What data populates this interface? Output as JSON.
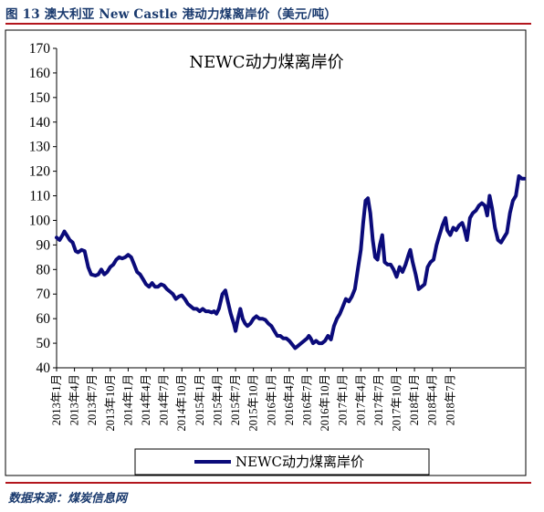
{
  "figure": {
    "title": "图 13 澳大利亚 New Castle 港动力煤离岸价（美元/吨）",
    "source": "数据来源：煤炭信息网"
  },
  "colors": {
    "series": "#0b0b7a",
    "rule": "#b3161d",
    "frame": "#000000"
  },
  "chart_data": {
    "type": "line",
    "title": "NEWC动力煤离岸价",
    "xlabel": "",
    "ylabel": "",
    "ylim": [
      40,
      170
    ],
    "yticks": [
      40,
      50,
      60,
      70,
      80,
      90,
      100,
      110,
      120,
      130,
      140,
      150,
      160,
      170
    ],
    "x_tick_labels": [
      "2013年1月",
      "2013年4月",
      "2013年7月",
      "2013年10月",
      "2014年1月",
      "2014年4月",
      "2014年7月",
      "2014年10月",
      "2015年1月",
      "2015年4月",
      "2015年7月",
      "2015年10月",
      "2016年1月",
      "2016年4月",
      "2016年7月",
      "2016年10月",
      "2017年1月",
      "2017年4月",
      "2017年7月",
      "2017年10月",
      "2018年1月",
      "2018年4月",
      "2018年7月"
    ],
    "legend": {
      "position": "bottom",
      "label": "NEWC动力煤离岸价"
    },
    "grid": false,
    "series": [
      {
        "name": "NEWC动力煤离岸价",
        "x_unit": "months since 2013年1月",
        "points": [
          [
            0,
            93
          ],
          [
            0.5,
            92
          ],
          [
            1,
            94
          ],
          [
            1.3,
            95.5
          ],
          [
            1.7,
            94
          ],
          [
            2.2,
            92
          ],
          [
            2.7,
            91
          ],
          [
            3.2,
            87.5
          ],
          [
            3.6,
            87
          ],
          [
            4.2,
            88
          ],
          [
            4.7,
            87.5
          ],
          [
            5.3,
            81
          ],
          [
            5.8,
            78
          ],
          [
            6.5,
            77.5
          ],
          [
            7,
            78
          ],
          [
            7.5,
            80
          ],
          [
            8,
            78
          ],
          [
            8.5,
            79
          ],
          [
            9,
            81
          ],
          [
            9.5,
            82
          ],
          [
            10,
            84
          ],
          [
            10.5,
            85
          ],
          [
            11,
            84.5
          ],
          [
            11.5,
            85
          ],
          [
            12,
            86
          ],
          [
            12.5,
            85
          ],
          [
            13,
            82
          ],
          [
            13.5,
            79
          ],
          [
            14,
            78
          ],
          [
            14.5,
            76
          ],
          [
            15,
            74
          ],
          [
            15.5,
            73
          ],
          [
            16,
            74.5
          ],
          [
            16.5,
            73
          ],
          [
            17,
            73
          ],
          [
            17.5,
            74
          ],
          [
            18,
            73.5
          ],
          [
            18.5,
            72
          ],
          [
            19,
            71
          ],
          [
            19.5,
            70
          ],
          [
            20,
            68
          ],
          [
            20.5,
            69
          ],
          [
            21,
            69.5
          ],
          [
            21.5,
            68
          ],
          [
            22,
            66
          ],
          [
            22.5,
            65
          ],
          [
            23,
            64
          ],
          [
            23.5,
            64
          ],
          [
            24,
            63
          ],
          [
            24.5,
            64
          ],
          [
            25,
            63
          ],
          [
            25.5,
            63
          ],
          [
            26,
            62.5
          ],
          [
            26.4,
            63
          ],
          [
            26.8,
            62
          ],
          [
            27.2,
            64
          ],
          [
            27.8,
            70
          ],
          [
            28.3,
            71.5
          ],
          [
            28.7,
            67
          ],
          [
            29.2,
            62
          ],
          [
            29.7,
            58
          ],
          [
            30,
            55
          ],
          [
            30.4,
            60
          ],
          [
            30.8,
            64
          ],
          [
            31.2,
            60
          ],
          [
            31.6,
            58
          ],
          [
            32,
            57
          ],
          [
            32.5,
            58
          ],
          [
            33,
            60
          ],
          [
            33.5,
            61
          ],
          [
            34,
            60
          ],
          [
            34.5,
            60
          ],
          [
            35,
            59.5
          ],
          [
            35.5,
            58
          ],
          [
            36,
            57
          ],
          [
            36.5,
            55
          ],
          [
            37,
            53
          ],
          [
            37.5,
            53
          ],
          [
            38,
            52
          ],
          [
            38.5,
            52
          ],
          [
            39,
            51
          ],
          [
            39.5,
            49.5
          ],
          [
            40,
            48
          ],
          [
            40.5,
            49
          ],
          [
            41,
            50
          ],
          [
            41.5,
            51
          ],
          [
            42,
            52
          ],
          [
            42.3,
            53
          ],
          [
            42.6,
            52
          ],
          [
            43,
            50
          ],
          [
            43.5,
            51
          ],
          [
            44,
            50
          ],
          [
            44.5,
            50
          ],
          [
            45,
            51
          ],
          [
            45.5,
            53
          ],
          [
            46,
            51.5
          ],
          [
            46.5,
            57
          ],
          [
            47,
            60
          ],
          [
            47.5,
            62
          ],
          [
            48,
            65
          ],
          [
            48.5,
            68
          ],
          [
            49,
            67
          ],
          [
            49.5,
            69
          ],
          [
            50,
            72
          ],
          [
            50.5,
            80
          ],
          [
            51,
            88
          ],
          [
            51.4,
            99
          ],
          [
            51.8,
            108
          ],
          [
            52.2,
            109
          ],
          [
            52.6,
            103
          ],
          [
            53,
            92
          ],
          [
            53.4,
            85
          ],
          [
            53.8,
            84
          ],
          [
            54.2,
            90
          ],
          [
            54.6,
            94
          ],
          [
            55,
            83
          ],
          [
            55.5,
            82
          ],
          [
            56,
            82
          ],
          [
            56.5,
            80
          ],
          [
            57,
            77
          ],
          [
            57.5,
            81
          ],
          [
            58,
            79
          ],
          [
            58.5,
            82
          ],
          [
            59,
            86
          ],
          [
            59.3,
            88
          ],
          [
            59.7,
            83
          ],
          [
            60.2,
            78
          ],
          [
            60.7,
            72
          ],
          [
            61.2,
            73
          ],
          [
            61.7,
            74
          ],
          [
            62.2,
            81
          ],
          [
            62.7,
            83
          ],
          [
            63.2,
            84
          ],
          [
            63.7,
            90
          ],
          [
            64.2,
            94
          ],
          [
            64.7,
            98
          ],
          [
            65.2,
            101
          ],
          [
            65.5,
            96
          ],
          [
            66,
            94
          ],
          [
            66.5,
            97
          ],
          [
            67,
            96
          ],
          [
            67.5,
            98
          ],
          [
            68,
            99
          ],
          [
            68.3,
            97
          ],
          [
            68.8,
            92
          ],
          [
            69.3,
            101
          ],
          [
            69.8,
            103
          ],
          [
            70.3,
            104
          ],
          [
            70.8,
            106
          ],
          [
            71.3,
            107
          ],
          [
            71.8,
            106
          ],
          [
            72.2,
            102
          ],
          [
            72.6,
            110
          ],
          [
            73,
            105
          ],
          [
            73.5,
            97
          ],
          [
            74,
            92
          ],
          [
            74.5,
            91
          ],
          [
            75,
            93
          ],
          [
            75.5,
            95
          ],
          [
            76,
            103
          ],
          [
            76.5,
            108
          ],
          [
            77,
            110
          ],
          [
            77.5,
            118
          ],
          [
            78,
            117
          ],
          [
            78.4,
            117
          ]
        ]
      }
    ]
  }
}
